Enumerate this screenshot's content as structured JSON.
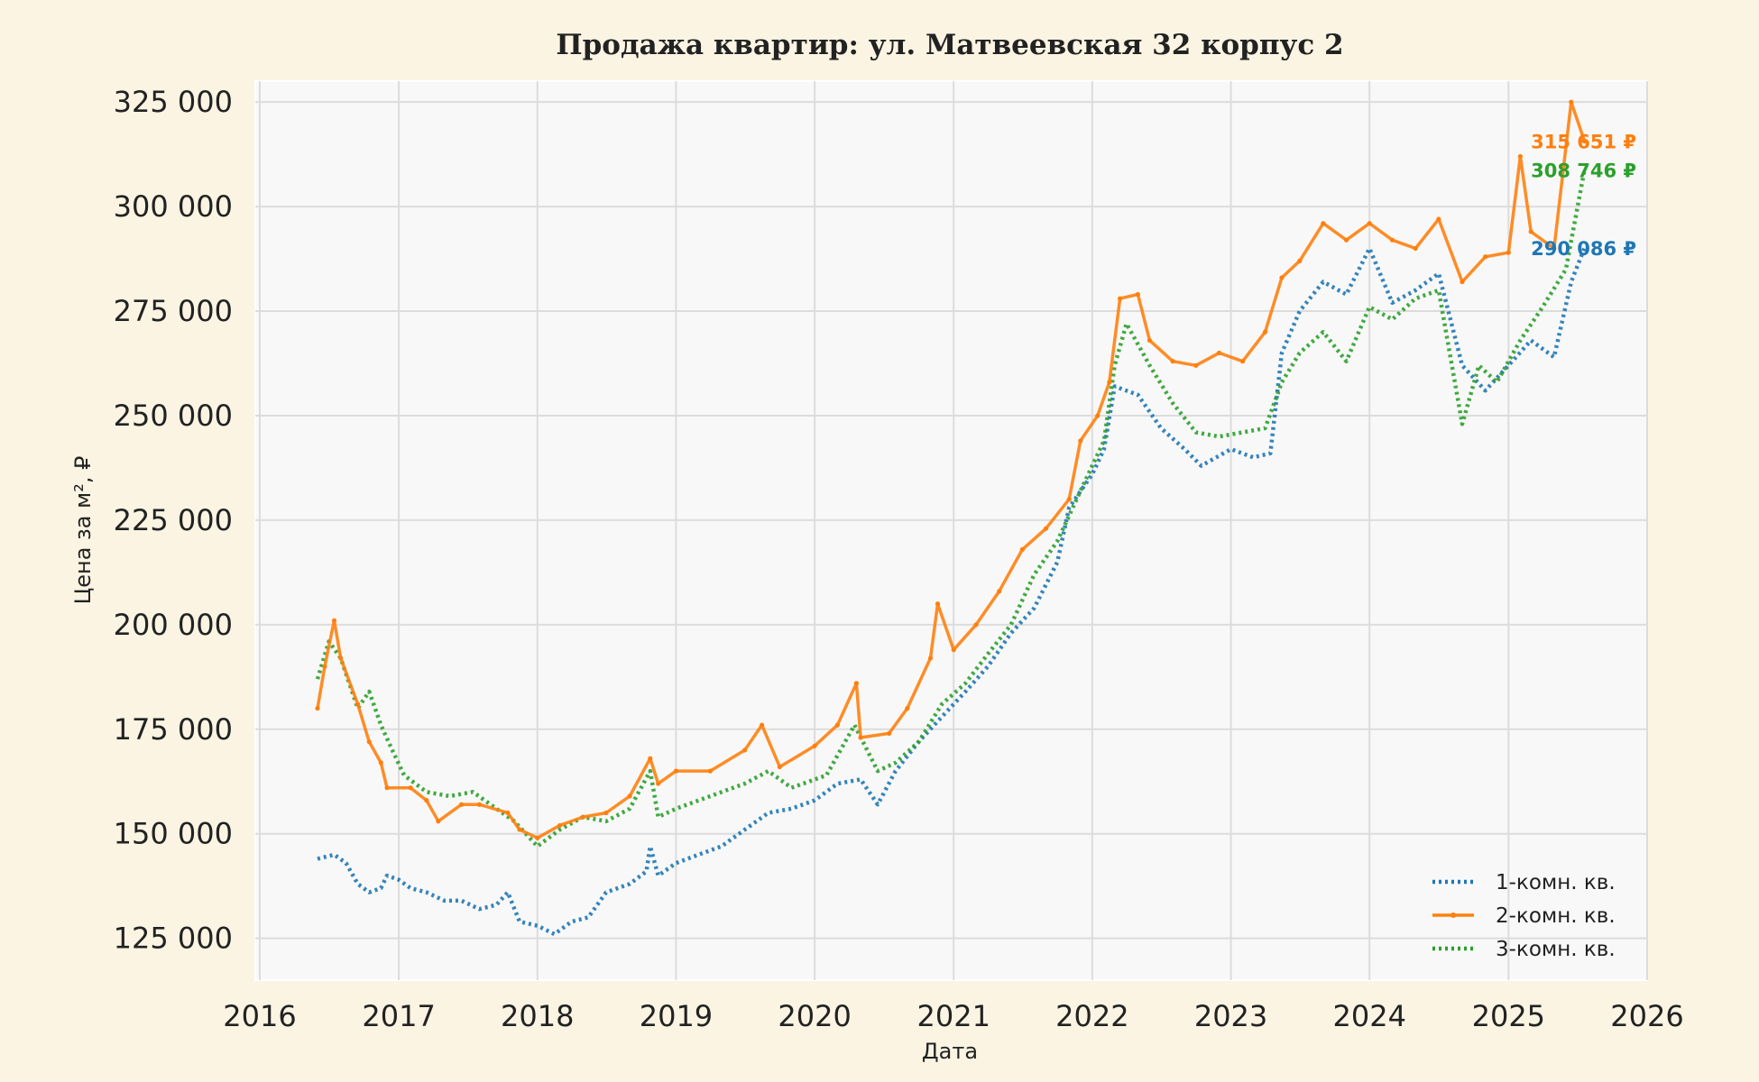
{
  "chart_data": {
    "type": "line",
    "title": "Продажа квартир: ул. Матвеевская 32 корпус 2",
    "xlabel": "Дата",
    "ylabel": "Цена за м², ₽",
    "xlim": [
      "2016-01-01",
      "2026-01-01"
    ],
    "ylim": [
      115000,
      330000
    ],
    "x_ticks": [
      "2016",
      "2017",
      "2018",
      "2019",
      "2020",
      "2021",
      "2022",
      "2023",
      "2024",
      "2025",
      "2026"
    ],
    "y_ticks": [
      125000,
      150000,
      175000,
      200000,
      225000,
      250000,
      275000,
      300000,
      325000
    ],
    "y_tick_labels": [
      "125 000",
      "150 000",
      "175 000",
      "200 000",
      "225 000",
      "250 000",
      "275 000",
      "300 000",
      "325 000"
    ],
    "grid": true,
    "legend_position": "bottom-right",
    "series": [
      {
        "name": "1-комн. кв.",
        "color": "#1f77b4",
        "style": "dotted",
        "end_label": "290 086 ₽",
        "points": [
          [
            "2016-06-01",
            144000
          ],
          [
            "2016-07-15",
            145000
          ],
          [
            "2016-08-15",
            143000
          ],
          [
            "2016-09-15",
            138000
          ],
          [
            "2016-10-15",
            136000
          ],
          [
            "2016-11-15",
            137000
          ],
          [
            "2016-12-01",
            140000
          ],
          [
            "2017-01-01",
            139000
          ],
          [
            "2017-02-01",
            137000
          ],
          [
            "2017-03-15",
            136000
          ],
          [
            "2017-05-01",
            134000
          ],
          [
            "2017-06-15",
            134000
          ],
          [
            "2017-08-01",
            132000
          ],
          [
            "2017-09-15",
            133000
          ],
          [
            "2017-10-15",
            136000
          ],
          [
            "2017-11-15",
            129000
          ],
          [
            "2018-01-01",
            128000
          ],
          [
            "2018-02-15",
            126000
          ],
          [
            "2018-04-01",
            129000
          ],
          [
            "2018-05-15",
            130000
          ],
          [
            "2018-07-01",
            136000
          ],
          [
            "2018-09-01",
            138000
          ],
          [
            "2018-10-15",
            141000
          ],
          [
            "2018-10-25",
            147000
          ],
          [
            "2018-11-15",
            140000
          ],
          [
            "2019-01-01",
            143000
          ],
          [
            "2019-03-01",
            145000
          ],
          [
            "2019-05-01",
            147000
          ],
          [
            "2019-07-01",
            151000
          ],
          [
            "2019-09-01",
            155000
          ],
          [
            "2019-11-01",
            156000
          ],
          [
            "2020-01-01",
            158000
          ],
          [
            "2020-03-01",
            162000
          ],
          [
            "2020-05-01",
            163000
          ],
          [
            "2020-06-15",
            157000
          ],
          [
            "2020-08-01",
            165000
          ],
          [
            "2020-10-01",
            172000
          ],
          [
            "2020-12-01",
            178000
          ],
          [
            "2021-02-01",
            184000
          ],
          [
            "2021-04-01",
            190000
          ],
          [
            "2021-06-01",
            198000
          ],
          [
            "2021-08-01",
            204000
          ],
          [
            "2021-10-01",
            215000
          ],
          [
            "2021-11-01",
            228000
          ],
          [
            "2022-01-01",
            236000
          ],
          [
            "2022-02-01",
            242000
          ],
          [
            "2022-03-01",
            257000
          ],
          [
            "2022-05-01",
            255000
          ],
          [
            "2022-07-01",
            247000
          ],
          [
            "2022-09-01",
            242000
          ],
          [
            "2022-10-15",
            238000
          ],
          [
            "2023-01-01",
            242000
          ],
          [
            "2023-03-01",
            240000
          ],
          [
            "2023-04-15",
            241000
          ],
          [
            "2023-05-15",
            265000
          ],
          [
            "2023-07-01",
            275000
          ],
          [
            "2023-09-01",
            282000
          ],
          [
            "2023-11-01",
            279000
          ],
          [
            "2024-01-01",
            290000
          ],
          [
            "2024-03-01",
            277000
          ],
          [
            "2024-05-01",
            280000
          ],
          [
            "2024-07-01",
            284000
          ],
          [
            "2024-09-01",
            262000
          ],
          [
            "2024-11-01",
            256000
          ],
          [
            "2025-01-01",
            262000
          ],
          [
            "2025-03-01",
            268000
          ],
          [
            "2025-05-01",
            264000
          ],
          [
            "2025-06-15",
            282000
          ],
          [
            "2025-07-20",
            290086
          ]
        ]
      },
      {
        "name": "2-комн. кв.",
        "color": "#ff7f0e",
        "style": "solid-markers",
        "end_label": "315 651 ₽",
        "points": [
          [
            "2016-06-01",
            180000
          ],
          [
            "2016-06-20",
            190000
          ],
          [
            "2016-07-15",
            201000
          ],
          [
            "2016-08-01",
            192000
          ],
          [
            "2016-09-15",
            181000
          ],
          [
            "2016-10-15",
            172000
          ],
          [
            "2016-11-15",
            167000
          ],
          [
            "2016-12-01",
            161000
          ],
          [
            "2017-02-01",
            161000
          ],
          [
            "2017-03-15",
            158000
          ],
          [
            "2017-04-15",
            153000
          ],
          [
            "2017-06-15",
            157000
          ],
          [
            "2017-08-01",
            157000
          ],
          [
            "2017-10-15",
            155000
          ],
          [
            "2017-11-15",
            151000
          ],
          [
            "2018-01-01",
            149000
          ],
          [
            "2018-03-01",
            152000
          ],
          [
            "2018-05-01",
            154000
          ],
          [
            "2018-07-01",
            155000
          ],
          [
            "2018-09-01",
            159000
          ],
          [
            "2018-10-25",
            168000
          ],
          [
            "2018-11-15",
            162000
          ],
          [
            "2019-01-01",
            165000
          ],
          [
            "2019-04-01",
            165000
          ],
          [
            "2019-07-01",
            170000
          ],
          [
            "2019-08-15",
            176000
          ],
          [
            "2019-10-01",
            166000
          ],
          [
            "2020-01-01",
            171000
          ],
          [
            "2020-03-01",
            176000
          ],
          [
            "2020-04-20",
            186000
          ],
          [
            "2020-05-01",
            173000
          ],
          [
            "2020-07-15",
            174000
          ],
          [
            "2020-09-01",
            180000
          ],
          [
            "2020-11-01",
            192000
          ],
          [
            "2020-11-20",
            205000
          ],
          [
            "2021-01-01",
            194000
          ],
          [
            "2021-03-01",
            200000
          ],
          [
            "2021-05-01",
            208000
          ],
          [
            "2021-07-01",
            218000
          ],
          [
            "2021-09-01",
            223000
          ],
          [
            "2021-11-01",
            230000
          ],
          [
            "2021-12-01",
            244000
          ],
          [
            "2022-01-15",
            250000
          ],
          [
            "2022-02-15",
            258000
          ],
          [
            "2022-03-15",
            278000
          ],
          [
            "2022-05-01",
            279000
          ],
          [
            "2022-06-01",
            268000
          ],
          [
            "2022-08-01",
            263000
          ],
          [
            "2022-10-01",
            262000
          ],
          [
            "2022-12-01",
            265000
          ],
          [
            "2023-02-01",
            263000
          ],
          [
            "2023-04-01",
            270000
          ],
          [
            "2023-05-15",
            283000
          ],
          [
            "2023-07-01",
            287000
          ],
          [
            "2023-09-01",
            296000
          ],
          [
            "2023-11-01",
            292000
          ],
          [
            "2024-01-01",
            296000
          ],
          [
            "2024-03-01",
            292000
          ],
          [
            "2024-05-01",
            290000
          ],
          [
            "2024-07-01",
            297000
          ],
          [
            "2024-09-01",
            282000
          ],
          [
            "2024-11-01",
            288000
          ],
          [
            "2025-01-01",
            289000
          ],
          [
            "2025-02-01",
            312000
          ],
          [
            "2025-03-01",
            294000
          ],
          [
            "2025-05-01",
            290000
          ],
          [
            "2025-06-15",
            325000
          ],
          [
            "2025-07-20",
            315651
          ]
        ]
      },
      {
        "name": "3-комн. кв.",
        "color": "#2ca02c",
        "style": "dotted",
        "end_label": "308 746 ₽",
        "points": [
          [
            "2016-06-01",
            187000
          ],
          [
            "2016-07-01",
            196000
          ],
          [
            "2016-08-01",
            192000
          ],
          [
            "2016-09-15",
            180000
          ],
          [
            "2016-10-15",
            184000
          ],
          [
            "2016-11-15",
            176000
          ],
          [
            "2016-12-15",
            170000
          ],
          [
            "2017-01-15",
            164000
          ],
          [
            "2017-03-15",
            160000
          ],
          [
            "2017-05-15",
            159000
          ],
          [
            "2017-07-15",
            160000
          ],
          [
            "2017-09-15",
            156000
          ],
          [
            "2017-11-01",
            153000
          ],
          [
            "2018-01-01",
            147000
          ],
          [
            "2018-03-01",
            151000
          ],
          [
            "2018-05-01",
            154000
          ],
          [
            "2018-07-01",
            153000
          ],
          [
            "2018-09-01",
            156000
          ],
          [
            "2018-10-25",
            165000
          ],
          [
            "2018-11-15",
            154000
          ],
          [
            "2019-01-01",
            156000
          ],
          [
            "2019-04-01",
            159000
          ],
          [
            "2019-07-01",
            162000
          ],
          [
            "2019-09-01",
            165000
          ],
          [
            "2019-11-01",
            161000
          ],
          [
            "2020-02-01",
            164000
          ],
          [
            "2020-04-15",
            176000
          ],
          [
            "2020-06-15",
            165000
          ],
          [
            "2020-08-01",
            167000
          ],
          [
            "2020-10-01",
            172000
          ],
          [
            "2020-12-01",
            181000
          ],
          [
            "2021-02-01",
            186000
          ],
          [
            "2021-04-01",
            193000
          ],
          [
            "2021-06-01",
            200000
          ],
          [
            "2021-08-01",
            212000
          ],
          [
            "2021-10-01",
            220000
          ],
          [
            "2021-12-01",
            232000
          ],
          [
            "2022-02-01",
            244000
          ],
          [
            "2022-03-01",
            262000
          ],
          [
            "2022-04-01",
            272000
          ],
          [
            "2022-06-01",
            262000
          ],
          [
            "2022-08-01",
            253000
          ],
          [
            "2022-10-01",
            246000
          ],
          [
            "2022-12-01",
            245000
          ],
          [
            "2023-02-01",
            246000
          ],
          [
            "2023-04-01",
            247000
          ],
          [
            "2023-05-15",
            258000
          ],
          [
            "2023-07-01",
            265000
          ],
          [
            "2023-09-01",
            270000
          ],
          [
            "2023-11-01",
            263000
          ],
          [
            "2024-01-01",
            276000
          ],
          [
            "2024-03-01",
            273000
          ],
          [
            "2024-05-01",
            278000
          ],
          [
            "2024-07-01",
            280000
          ],
          [
            "2024-09-01",
            248000
          ],
          [
            "2024-10-15",
            262000
          ],
          [
            "2024-12-01",
            258000
          ],
          [
            "2025-02-01",
            268000
          ],
          [
            "2025-04-01",
            276000
          ],
          [
            "2025-06-01",
            285000
          ],
          [
            "2025-07-20",
            308746
          ]
        ]
      }
    ]
  }
}
